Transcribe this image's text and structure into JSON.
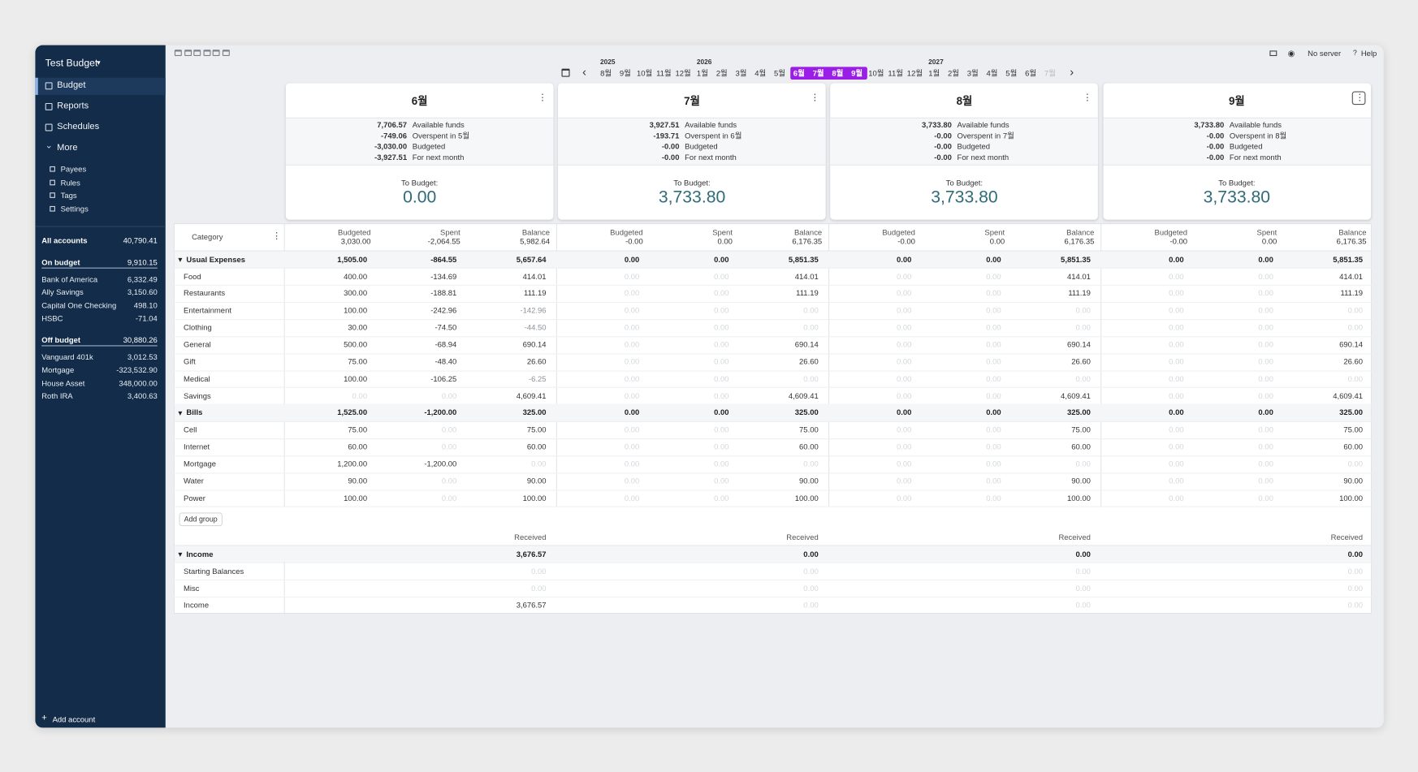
{
  "sidebar": {
    "budget_name": "Test Budget",
    "nav": [
      "Budget",
      "Reports",
      "Schedules",
      "More"
    ],
    "more_items": [
      "Payees",
      "Rules",
      "Tags",
      "Settings"
    ],
    "all_accounts": {
      "name": "All accounts",
      "balance": "40,790.41"
    },
    "on_budget": {
      "name": "On budget",
      "balance": "9,910.15",
      "accounts": [
        {
          "name": "Bank of America",
          "balance": "6,332.49"
        },
        {
          "name": "Ally Savings",
          "balance": "3,150.60"
        },
        {
          "name": "Capital One Checking",
          "balance": "498.10"
        },
        {
          "name": "HSBC",
          "balance": "-71.04"
        }
      ]
    },
    "off_budget": {
      "name": "Off budget",
      "balance": "30,880.26",
      "accounts": [
        {
          "name": "Vanguard 401k",
          "balance": "3,012.53"
        },
        {
          "name": "Mortgage",
          "balance": "-323,532.90"
        },
        {
          "name": "House Asset",
          "balance": "348,000.00"
        },
        {
          "name": "Roth IRA",
          "balance": "3,400.63"
        }
      ]
    },
    "add_account": "Add account"
  },
  "toolbar": {
    "server": "No server",
    "help": "Help",
    "years": [
      {
        "year": "2025",
        "months": [
          "8월",
          "9월",
          "10월",
          "11월",
          "12월"
        ]
      },
      {
        "year": "2026",
        "months": [
          "1월",
          "2월",
          "3월",
          "4월",
          "5월",
          "6월",
          "7월",
          "8월",
          "9월",
          "10월",
          "11월",
          "12월"
        ]
      },
      {
        "year": "2027",
        "months": [
          "1월",
          "2월",
          "3월",
          "4월",
          "5월",
          "6월",
          "7월"
        ]
      }
    ]
  },
  "summary_labels": {
    "available": "Available funds",
    "budgeted": "Budgeted",
    "next": "For next month",
    "to_budget": "To Budget:"
  },
  "months": [
    {
      "name": "6월",
      "available": "7,706.57",
      "overspent": "-749.06",
      "overspent_label": "Overspent in 5월",
      "budgeted": "-3,030.00",
      "next": "-3,927.51",
      "to_budget": "0.00",
      "totals": [
        "3,030.00",
        "-2,064.55",
        "5,982.64"
      ]
    },
    {
      "name": "7월",
      "available": "3,927.51",
      "overspent": "-193.71",
      "overspent_label": "Overspent in 6월",
      "budgeted": "-0.00",
      "next": "-0.00",
      "to_budget": "3,733.80",
      "totals": [
        "-0.00",
        "0.00",
        "6,176.35"
      ]
    },
    {
      "name": "8월",
      "available": "3,733.80",
      "overspent": "-0.00",
      "overspent_label": "Overspent in 7월",
      "budgeted": "-0.00",
      "next": "-0.00",
      "to_budget": "3,733.80",
      "totals": [
        "-0.00",
        "0.00",
        "6,176.35"
      ]
    },
    {
      "name": "9월",
      "available": "3,733.80",
      "overspent": "-0.00",
      "overspent_label": "Overspent in 8월",
      "budgeted": "-0.00",
      "next": "-0.00",
      "to_budget": "3,733.80",
      "totals": [
        "-0.00",
        "0.00",
        "6,176.35"
      ]
    }
  ],
  "table": {
    "header": {
      "category": "Category",
      "columns": [
        "Budgeted",
        "Spent",
        "Balance"
      ],
      "received": "Received"
    },
    "groups": [
      {
        "name": "Usual Expenses",
        "totals": [
          [
            "1,505.00",
            "-864.55",
            "5,657.64"
          ],
          [
            "0.00",
            "0.00",
            "5,851.35"
          ],
          [
            "0.00",
            "0.00",
            "5,851.35"
          ],
          [
            "0.00",
            "0.00",
            "5,851.35"
          ]
        ],
        "categories": [
          {
            "name": "Food",
            "months": [
              [
                "400.00",
                "-134.69",
                "414.01"
              ],
              [
                "0.00",
                "0.00",
                "414.01"
              ],
              [
                "0.00",
                "0.00",
                "414.01"
              ],
              [
                "0.00",
                "0.00",
                "414.01"
              ]
            ]
          },
          {
            "name": "Restaurants",
            "months": [
              [
                "300.00",
                "-188.81",
                "111.19"
              ],
              [
                "0.00",
                "0.00",
                "111.19"
              ],
              [
                "0.00",
                "0.00",
                "111.19"
              ],
              [
                "0.00",
                "0.00",
                "111.19"
              ]
            ]
          },
          {
            "name": "Entertainment",
            "months": [
              [
                "100.00",
                "-242.96",
                "-142.96"
              ],
              [
                "0.00",
                "0.00",
                "0.00"
              ],
              [
                "0.00",
                "0.00",
                "0.00"
              ],
              [
                "0.00",
                "0.00",
                "0.00"
              ]
            ]
          },
          {
            "name": "Clothing",
            "months": [
              [
                "30.00",
                "-74.50",
                "-44.50"
              ],
              [
                "0.00",
                "0.00",
                "0.00"
              ],
              [
                "0.00",
                "0.00",
                "0.00"
              ],
              [
                "0.00",
                "0.00",
                "0.00"
              ]
            ]
          },
          {
            "name": "General",
            "months": [
              [
                "500.00",
                "-68.94",
                "690.14"
              ],
              [
                "0.00",
                "0.00",
                "690.14"
              ],
              [
                "0.00",
                "0.00",
                "690.14"
              ],
              [
                "0.00",
                "0.00",
                "690.14"
              ]
            ]
          },
          {
            "name": "Gift",
            "months": [
              [
                "75.00",
                "-48.40",
                "26.60"
              ],
              [
                "0.00",
                "0.00",
                "26.60"
              ],
              [
                "0.00",
                "0.00",
                "26.60"
              ],
              [
                "0.00",
                "0.00",
                "26.60"
              ]
            ]
          },
          {
            "name": "Medical",
            "months": [
              [
                "100.00",
                "-106.25",
                "-6.25"
              ],
              [
                "0.00",
                "0.00",
                "0.00"
              ],
              [
                "0.00",
                "0.00",
                "0.00"
              ],
              [
                "0.00",
                "0.00",
                "0.00"
              ]
            ]
          },
          {
            "name": "Savings",
            "months": [
              [
                "0.00",
                "0.00",
                "4,609.41"
              ],
              [
                "0.00",
                "0.00",
                "4,609.41"
              ],
              [
                "0.00",
                "0.00",
                "4,609.41"
              ],
              [
                "0.00",
                "0.00",
                "4,609.41"
              ]
            ]
          }
        ]
      },
      {
        "name": "Bills",
        "totals": [
          [
            "1,525.00",
            "-1,200.00",
            "325.00"
          ],
          [
            "0.00",
            "0.00",
            "325.00"
          ],
          [
            "0.00",
            "0.00",
            "325.00"
          ],
          [
            "0.00",
            "0.00",
            "325.00"
          ]
        ],
        "categories": [
          {
            "name": "Cell",
            "months": [
              [
                "75.00",
                "0.00",
                "75.00"
              ],
              [
                "0.00",
                "0.00",
                "75.00"
              ],
              [
                "0.00",
                "0.00",
                "75.00"
              ],
              [
                "0.00",
                "0.00",
                "75.00"
              ]
            ]
          },
          {
            "name": "Internet",
            "months": [
              [
                "60.00",
                "0.00",
                "60.00"
              ],
              [
                "0.00",
                "0.00",
                "60.00"
              ],
              [
                "0.00",
                "0.00",
                "60.00"
              ],
              [
                "0.00",
                "0.00",
                "60.00"
              ]
            ]
          },
          {
            "name": "Mortgage",
            "months": [
              [
                "1,200.00",
                "-1,200.00",
                "0.00"
              ],
              [
                "0.00",
                "0.00",
                "0.00"
              ],
              [
                "0.00",
                "0.00",
                "0.00"
              ],
              [
                "0.00",
                "0.00",
                "0.00"
              ]
            ]
          },
          {
            "name": "Water",
            "months": [
              [
                "90.00",
                "0.00",
                "90.00"
              ],
              [
                "0.00",
                "0.00",
                "90.00"
              ],
              [
                "0.00",
                "0.00",
                "90.00"
              ],
              [
                "0.00",
                "0.00",
                "90.00"
              ]
            ]
          },
          {
            "name": "Power",
            "months": [
              [
                "100.00",
                "0.00",
                "100.00"
              ],
              [
                "0.00",
                "0.00",
                "100.00"
              ],
              [
                "0.00",
                "0.00",
                "100.00"
              ],
              [
                "0.00",
                "0.00",
                "100.00"
              ]
            ]
          }
        ]
      }
    ],
    "add_group": "Add group",
    "income": {
      "name": "Income",
      "totals": [
        "3,676.57",
        "0.00",
        "0.00",
        "0.00"
      ],
      "categories": [
        {
          "name": "Starting Balances",
          "months": [
            "0.00",
            "0.00",
            "0.00",
            "0.00"
          ]
        },
        {
          "name": "Misc",
          "months": [
            "0.00",
            "0.00",
            "0.00",
            "0.00"
          ]
        },
        {
          "name": "Income",
          "months": [
            "3,676.57",
            "0.00",
            "0.00",
            "0.00"
          ]
        }
      ]
    }
  }
}
